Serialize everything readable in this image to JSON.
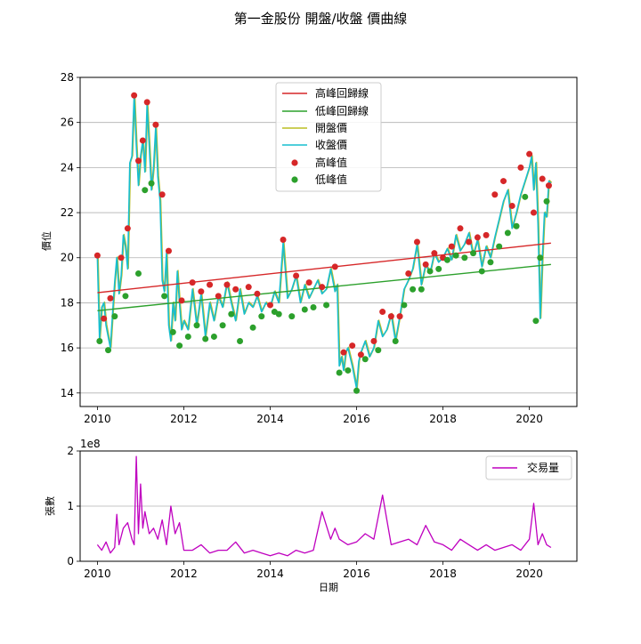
{
  "title": "第一金股份 開盤/收盤 價曲線",
  "colors": {
    "peak_regression": "#d62728",
    "trough_regression": "#2ca02c",
    "open": "#bcbd22",
    "close": "#17becf",
    "peak_point": "#d62728",
    "trough_point": "#2ca02c",
    "volume": "#bf00bf",
    "grid": "#b0b0b0"
  },
  "chart_data": [
    {
      "type": "line",
      "ylabel": "價位",
      "xlabel": "",
      "xlim": [
        2009.6,
        2021.1
      ],
      "ylim": [
        13.4,
        28
      ],
      "xticks": [
        2010,
        2012,
        2014,
        2016,
        2018,
        2020
      ],
      "xtick_labels": [
        "2010",
        "2012",
        "2014",
        "2016",
        "2018",
        "2020"
      ],
      "yticks": [
        14,
        16,
        18,
        20,
        22,
        24,
        26,
        28
      ],
      "ytick_labels": [
        "14",
        "16",
        "18",
        "20",
        "22",
        "24",
        "26",
        "28"
      ],
      "grid": "horizontal",
      "legend_position": "top-center",
      "legend": [
        "高峰回歸線",
        "低峰回歸線",
        "開盤價",
        "收盤價",
        "高峰值",
        "低峰值"
      ],
      "series": [
        {
          "name": "收盤價",
          "x": [
            2010.0,
            2010.05,
            2010.1,
            2010.15,
            2010.2,
            2010.25,
            2010.3,
            2010.35,
            2010.4,
            2010.45,
            2010.5,
            2010.55,
            2010.6,
            2010.65,
            2010.7,
            2010.75,
            2010.8,
            2010.85,
            2010.9,
            2010.95,
            2011.0,
            2011.05,
            2011.1,
            2011.15,
            2011.2,
            2011.25,
            2011.3,
            2011.35,
            2011.4,
            2011.45,
            2011.5,
            2011.55,
            2011.6,
            2011.65,
            2011.7,
            2011.75,
            2011.8,
            2011.85,
            2011.9,
            2011.95,
            2012.0,
            2012.1,
            2012.2,
            2012.3,
            2012.4,
            2012.5,
            2012.6,
            2012.7,
            2012.8,
            2012.9,
            2013.0,
            2013.1,
            2013.2,
            2013.3,
            2013.4,
            2013.5,
            2013.6,
            2013.7,
            2013.8,
            2013.9,
            2014.0,
            2014.1,
            2014.2,
            2014.3,
            2014.4,
            2014.5,
            2014.6,
            2014.7,
            2014.8,
            2014.9,
            2015.0,
            2015.1,
            2015.2,
            2015.3,
            2015.4,
            2015.5,
            2015.55,
            2015.6,
            2015.65,
            2015.7,
            2015.75,
            2015.8,
            2015.9,
            2016.0,
            2016.05,
            2016.1,
            2016.2,
            2016.3,
            2016.4,
            2016.5,
            2016.6,
            2016.7,
            2016.8,
            2016.9,
            2017.0,
            2017.1,
            2017.2,
            2017.3,
            2017.4,
            2017.5,
            2017.6,
            2017.7,
            2017.8,
            2017.9,
            2018.0,
            2018.1,
            2018.2,
            2018.3,
            2018.4,
            2018.5,
            2018.6,
            2018.7,
            2018.8,
            2018.9,
            2019.0,
            2019.1,
            2019.2,
            2019.3,
            2019.4,
            2019.5,
            2019.6,
            2019.7,
            2019.8,
            2019.9,
            2020.0,
            2020.05,
            2020.1,
            2020.15,
            2020.2,
            2020.25,
            2020.3,
            2020.35,
            2020.4,
            2020.45,
            2020.5
          ],
          "y": [
            20.0,
            16.4,
            17.8,
            18.0,
            17.0,
            16.5,
            16.0,
            17.5,
            18.9,
            20.0,
            18.4,
            19.2,
            21.0,
            20.5,
            19.5,
            24.2,
            24.5,
            27.2,
            25.0,
            23.2,
            24.5,
            25.2,
            23.8,
            26.8,
            25.0,
            23.0,
            24.0,
            25.8,
            23.6,
            22.5,
            19.0,
            18.5,
            20.2,
            17.0,
            16.3,
            18.0,
            17.2,
            19.4,
            18.0,
            16.8,
            17.2,
            16.8,
            18.6,
            17.0,
            18.4,
            16.5,
            18.0,
            17.2,
            18.3,
            17.8,
            18.9,
            18.0,
            17.2,
            18.6,
            17.5,
            18.0,
            17.8,
            18.3,
            17.6,
            18.0,
            17.8,
            18.5,
            18.0,
            20.7,
            18.2,
            18.6,
            19.2,
            18.0,
            18.8,
            18.2,
            18.6,
            19.0,
            18.4,
            18.6,
            19.5,
            18.5,
            18.8,
            15.2,
            15.6,
            15.0,
            15.8,
            16.0,
            15.2,
            14.2,
            15.4,
            15.8,
            16.3,
            15.6,
            16.0,
            17.2,
            16.5,
            16.8,
            17.5,
            16.3,
            17.4,
            18.6,
            19.0,
            19.5,
            20.6,
            18.8,
            19.7,
            19.3,
            20.2,
            19.8,
            20.0,
            20.4,
            19.9,
            21.0,
            20.3,
            20.6,
            21.1,
            20.1,
            20.8,
            19.6,
            20.5,
            20.0,
            20.9,
            21.7,
            22.5,
            23.0,
            21.3,
            22.0,
            22.8,
            23.4,
            24.0,
            24.5,
            23.0,
            24.2,
            21.5,
            17.3,
            20.0,
            22.0,
            21.8,
            23.4,
            23.3
          ]
        },
        {
          "name": "高峰回歸線",
          "x": [
            2010.0,
            2020.5
          ],
          "y": [
            18.45,
            20.65
          ]
        },
        {
          "name": "低峰回歸線",
          "x": [
            2010.0,
            2020.5
          ],
          "y": [
            17.65,
            19.7
          ]
        },
        {
          "name": "高峰值",
          "x": [
            2010.0,
            2010.15,
            2010.3,
            2010.55,
            2010.7,
            2010.85,
            2010.95,
            2011.05,
            2011.15,
            2011.35,
            2011.5,
            2011.65,
            2011.95,
            2012.2,
            2012.4,
            2012.6,
            2012.8,
            2013.0,
            2013.2,
            2013.5,
            2013.7,
            2014.0,
            2014.3,
            2014.6,
            2014.9,
            2015.2,
            2015.5,
            2015.7,
            2015.9,
            2016.1,
            2016.4,
            2016.6,
            2016.8,
            2017.0,
            2017.2,
            2017.4,
            2017.6,
            2017.8,
            2018.0,
            2018.2,
            2018.4,
            2018.6,
            2018.8,
            2019.0,
            2019.2,
            2019.4,
            2019.6,
            2019.8,
            2020.0,
            2020.1,
            2020.3,
            2020.45
          ],
          "y": [
            20.1,
            17.3,
            18.2,
            20.0,
            21.3,
            27.2,
            24.3,
            25.2,
            26.9,
            25.9,
            22.8,
            20.3,
            18.1,
            18.9,
            18.5,
            18.8,
            18.3,
            18.8,
            18.6,
            18.7,
            18.4,
            17.9,
            20.8,
            19.2,
            18.9,
            18.7,
            19.6,
            15.8,
            16.1,
            15.7,
            16.3,
            17.6,
            17.4,
            17.4,
            19.3,
            20.7,
            19.7,
            20.2,
            20.0,
            20.5,
            21.3,
            20.7,
            20.9,
            21.0,
            22.8,
            23.4,
            22.3,
            24.0,
            24.6,
            22.0,
            23.5,
            23.2
          ]
        },
        {
          "name": "低峰值",
          "x": [
            2010.05,
            2010.25,
            2010.4,
            2010.65,
            2010.95,
            2011.1,
            2011.25,
            2011.55,
            2011.75,
            2011.9,
            2012.1,
            2012.3,
            2012.5,
            2012.7,
            2012.9,
            2013.1,
            2013.3,
            2013.6,
            2013.8,
            2014.1,
            2014.2,
            2014.5,
            2014.8,
            2015.0,
            2015.3,
            2015.6,
            2015.8,
            2016.0,
            2016.2,
            2016.5,
            2016.9,
            2017.1,
            2017.3,
            2017.5,
            2017.7,
            2017.9,
            2018.1,
            2018.3,
            2018.5,
            2018.7,
            2018.9,
            2019.1,
            2019.3,
            2019.5,
            2019.7,
            2019.9,
            2020.15,
            2020.25,
            2020.4
          ],
          "y": [
            16.3,
            15.9,
            17.4,
            18.3,
            19.3,
            23.0,
            23.3,
            18.3,
            16.7,
            16.1,
            16.5,
            17.0,
            16.4,
            16.5,
            17.0,
            17.5,
            16.3,
            16.9,
            17.4,
            17.6,
            17.5,
            17.4,
            17.7,
            17.8,
            17.9,
            14.9,
            15.0,
            14.1,
            15.5,
            15.9,
            16.3,
            17.9,
            18.6,
            18.6,
            19.4,
            19.5,
            19.9,
            20.1,
            20.0,
            20.2,
            19.4,
            19.8,
            20.5,
            21.1,
            21.4,
            22.7,
            17.2,
            20.0,
            22.5
          ]
        }
      ]
    },
    {
      "type": "line",
      "ylabel": "張數",
      "xlabel": "日期",
      "offset_text": "1e8",
      "xlim": [
        2009.6,
        2021.1
      ],
      "ylim": [
        0,
        2
      ],
      "xticks": [
        2010,
        2012,
        2014,
        2016,
        2018,
        2020
      ],
      "xtick_labels": [
        "2010",
        "2012",
        "2014",
        "2016",
        "2018",
        "2020"
      ],
      "yticks": [
        0,
        1,
        2
      ],
      "ytick_labels": [
        "0",
        "1",
        "2"
      ],
      "grid": "horizontal",
      "legend_position": "top-right",
      "legend": [
        "交易量"
      ],
      "series": [
        {
          "name": "交易量",
          "x": [
            2010.0,
            2010.1,
            2010.2,
            2010.3,
            2010.4,
            2010.45,
            2010.5,
            2010.6,
            2010.7,
            2010.8,
            2010.85,
            2010.9,
            2010.95,
            2011.0,
            2011.05,
            2011.1,
            2011.2,
            2011.3,
            2011.4,
            2011.5,
            2011.6,
            2011.7,
            2011.8,
            2011.9,
            2012.0,
            2012.2,
            2012.4,
            2012.6,
            2012.8,
            2013.0,
            2013.2,
            2013.4,
            2013.6,
            2013.8,
            2014.0,
            2014.2,
            2014.4,
            2014.6,
            2014.8,
            2015.0,
            2015.2,
            2015.4,
            2015.5,
            2015.6,
            2015.8,
            2016.0,
            2016.2,
            2016.4,
            2016.6,
            2016.8,
            2017.0,
            2017.2,
            2017.4,
            2017.6,
            2017.8,
            2018.0,
            2018.2,
            2018.4,
            2018.6,
            2018.8,
            2019.0,
            2019.2,
            2019.4,
            2019.6,
            2019.8,
            2020.0,
            2020.1,
            2020.2,
            2020.3,
            2020.4,
            2020.5
          ],
          "y": [
            0.3,
            0.2,
            0.35,
            0.15,
            0.25,
            0.85,
            0.3,
            0.6,
            0.7,
            0.4,
            0.3,
            1.9,
            0.5,
            1.4,
            0.6,
            0.9,
            0.5,
            0.6,
            0.4,
            0.75,
            0.3,
            1.0,
            0.5,
            0.7,
            0.2,
            0.2,
            0.3,
            0.15,
            0.2,
            0.2,
            0.35,
            0.15,
            0.2,
            0.15,
            0.1,
            0.15,
            0.1,
            0.2,
            0.15,
            0.2,
            0.9,
            0.4,
            0.6,
            0.4,
            0.3,
            0.35,
            0.5,
            0.4,
            1.2,
            0.3,
            0.35,
            0.4,
            0.3,
            0.65,
            0.35,
            0.3,
            0.2,
            0.4,
            0.3,
            0.2,
            0.3,
            0.2,
            0.25,
            0.3,
            0.2,
            0.4,
            1.05,
            0.3,
            0.5,
            0.3,
            0.25
          ]
        }
      ]
    }
  ]
}
